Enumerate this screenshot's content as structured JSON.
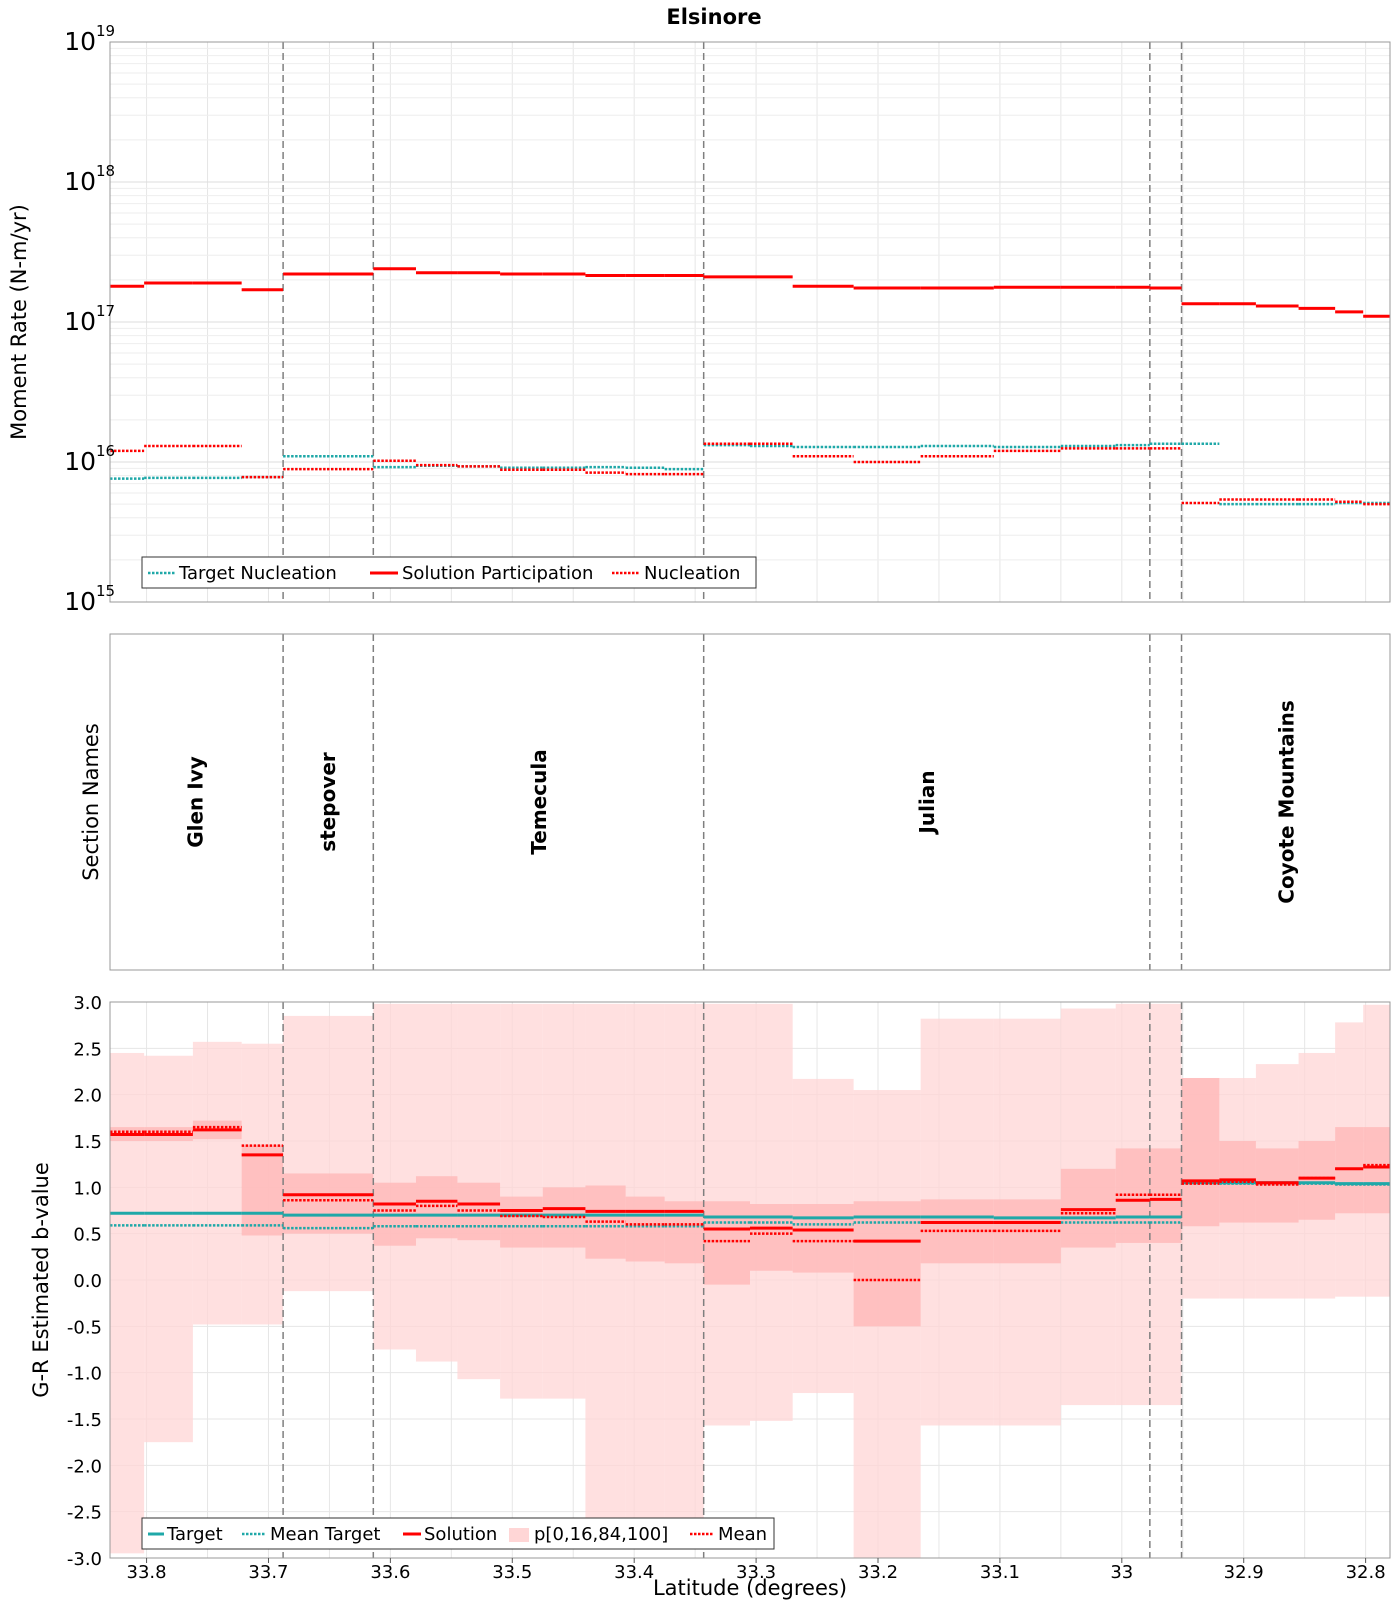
{
  "title": "Elsinore",
  "xlabel": "Latitude (degrees)",
  "xlim": [
    33.83,
    32.78
  ],
  "x_ticks": [
    33.8,
    33.7,
    33.6,
    33.5,
    33.4,
    33.3,
    33.2,
    33.1,
    33.0,
    32.9,
    32.8
  ],
  "x_tick_labels": [
    "33.8",
    "33.7",
    "33.6",
    "33.5",
    "33.4",
    "33.3",
    "33.2",
    "33.1",
    "33",
    "32.9",
    "32.8"
  ],
  "section_boundaries": [
    33.688,
    33.614,
    33.343,
    32.977,
    32.951
  ],
  "colors": {
    "target": "#1fa8a8",
    "solution": "#ff0000",
    "band_outer": "#ffd6d6",
    "band_inner": "#ffb8b8",
    "frame": "#999999",
    "grid": "#e6e6e6",
    "divider": "#7f7f7f"
  },
  "chart_data": [
    {
      "name": "moment-rate",
      "type": "line",
      "ylabel": "Moment Rate (N-m/yr)",
      "yscale": "log",
      "ylim": [
        1000000000000000.0,
        1e+19
      ],
      "y_ticks": [
        {
          "base": "10",
          "exp": "15"
        },
        {
          "base": "10",
          "exp": "16"
        },
        {
          "base": "10",
          "exp": "17"
        },
        {
          "base": "10",
          "exp": "18"
        },
        {
          "base": "10",
          "exp": "19"
        }
      ],
      "x_edges": [
        33.83,
        33.802,
        33.762,
        33.722,
        33.688,
        33.652,
        33.614,
        33.579,
        33.545,
        33.51,
        33.475,
        33.44,
        33.407,
        33.375,
        33.343,
        33.305,
        33.27,
        33.22,
        33.165,
        33.105,
        33.05,
        33.005,
        32.977,
        32.951,
        32.92,
        32.89,
        32.855,
        32.825,
        32.802,
        32.78
      ],
      "legend": [
        "Target Nucleation",
        "Solution Participation",
        "Nucleation"
      ],
      "legend_position": "lower-left",
      "series": [
        {
          "name": "Target Nucleation",
          "style": "dotted",
          "values": [
            7600000000000000.0,
            7700000000000000.0,
            7700000000000000.0,
            7800000000000000.0,
            1.1e+16,
            1.1e+16,
            9200000000000000.0,
            9400000000000000.0,
            9300000000000000.0,
            9100000000000000.0,
            9100000000000000.0,
            9200000000000000.0,
            9100000000000000.0,
            8900000000000000.0,
            1.32e+16,
            1.3e+16,
            1.28e+16,
            1.28e+16,
            1.3e+16,
            1.28e+16,
            1.3e+16,
            1.32e+16,
            1.35e+16,
            1.35e+16,
            5000000000000000.0,
            5000000000000000.0,
            5000000000000000.0,
            5100000000000000.0,
            5100000000000000.0,
            4900000000000000.0
          ]
        },
        {
          "name": "Solution Participation",
          "style": "solid",
          "values": [
            1.8e+17,
            1.9e+17,
            1.9e+17,
            1.7e+17,
            2.2e+17,
            2.2e+17,
            2.4e+17,
            2.25e+17,
            2.25e+17,
            2.2e+17,
            2.2e+17,
            2.15e+17,
            2.15e+17,
            2.15e+17,
            2.1e+17,
            2.1e+17,
            1.8e+17,
            1.75e+17,
            1.75e+17,
            1.77e+17,
            1.77e+17,
            1.77e+17,
            1.75e+17,
            1.35e+17,
            1.35e+17,
            1.3e+17,
            1.25e+17,
            1.18e+17,
            1.1e+17,
            1.1e+17
          ]
        },
        {
          "name": "Nucleation",
          "style": "dotted",
          "values": [
            1.2e+16,
            1.3e+16,
            1.3e+16,
            7800000000000000.0,
            8900000000000000.0,
            8900000000000000.0,
            1.02e+16,
            9500000000000000.0,
            9300000000000000.0,
            8800000000000000.0,
            8800000000000000.0,
            8400000000000000.0,
            8200000000000000.0,
            8200000000000000.0,
            1.35e+16,
            1.35e+16,
            1.1e+16,
            1e+16,
            1.1e+16,
            1.2e+16,
            1.25e+16,
            1.25e+16,
            1.25e+16,
            5100000000000000.0,
            5400000000000000.0,
            5400000000000000.0,
            5400000000000000.0,
            5200000000000000.0,
            5000000000000000.0,
            5000000000000000.0
          ]
        }
      ]
    },
    {
      "name": "section-names",
      "type": "table",
      "ylabel": "Section Names",
      "sections": [
        {
          "name": "Glen Ivy",
          "center": 33.76
        },
        {
          "name": "stepover",
          "center": 33.651
        },
        {
          "name": "Temecula",
          "center": 33.478
        },
        {
          "name": "Julian",
          "center": 33.16
        },
        {
          "name": "Coyote Mountains",
          "center": 32.865
        }
      ]
    },
    {
      "name": "b-value",
      "type": "area",
      "ylabel": "G-R Estimated b-value",
      "ylim": [
        -3.0,
        3.0
      ],
      "y_ticks": [
        3.0,
        2.5,
        2.0,
        1.5,
        1.0,
        0.5,
        0.0,
        -0.5,
        -1.0,
        -1.5,
        -2.0,
        -2.5,
        -3.0
      ],
      "y_tick_labels": [
        "3.0",
        "2.5",
        "2.0",
        "1.5",
        "1.0",
        "0.5",
        "0.0",
        "-0.5",
        "-1.0",
        "-1.5",
        "-2.0",
        "-2.5",
        "-3.0"
      ],
      "x_edges": [
        33.83,
        33.802,
        33.762,
        33.722,
        33.688,
        33.652,
        33.614,
        33.579,
        33.545,
        33.51,
        33.475,
        33.44,
        33.407,
        33.375,
        33.343,
        33.305,
        33.27,
        33.22,
        33.165,
        33.105,
        33.05,
        33.005,
        32.977,
        32.951,
        32.92,
        32.89,
        32.855,
        32.825,
        32.802,
        32.78
      ],
      "legend": [
        "Target",
        "Mean Target",
        "Solution",
        "p[0,16,84,100]",
        "Mean"
      ],
      "legend_position": "lower-left",
      "series": [
        {
          "name": "p0",
          "values": [
            -2.95,
            -1.75,
            -0.48,
            -0.48,
            -0.12,
            -0.12,
            -0.75,
            -0.88,
            -1.07,
            -1.28,
            -1.28,
            -2.85,
            -2.85,
            -2.85,
            -1.57,
            -1.52,
            -1.22,
            -3.0,
            -1.57,
            -1.57,
            -1.35,
            -1.35,
            -1.35,
            -0.2,
            -0.2,
            -0.2,
            -0.2,
            -0.18,
            -0.18,
            -0.18
          ]
        },
        {
          "name": "p16",
          "values": [
            1.5,
            1.5,
            1.52,
            0.48,
            0.5,
            0.5,
            0.37,
            0.45,
            0.43,
            0.35,
            0.35,
            0.23,
            0.2,
            0.18,
            -0.05,
            0.1,
            0.08,
            -0.5,
            0.18,
            0.18,
            0.35,
            0.4,
            0.4,
            0.58,
            0.62,
            0.62,
            0.65,
            0.72,
            0.72,
            0.72
          ]
        },
        {
          "name": "p84",
          "values": [
            1.65,
            1.65,
            1.72,
            1.45,
            1.15,
            1.15,
            1.05,
            1.12,
            1.05,
            0.9,
            1.0,
            1.02,
            0.9,
            0.85,
            0.85,
            0.82,
            0.82,
            0.85,
            0.87,
            0.87,
            1.2,
            1.42,
            1.42,
            2.18,
            1.5,
            1.42,
            1.5,
            1.65,
            1.65,
            1.7
          ]
        },
        {
          "name": "p100",
          "values": [
            2.45,
            2.42,
            2.57,
            2.55,
            2.85,
            2.85,
            2.98,
            2.98,
            2.98,
            2.98,
            2.98,
            2.98,
            2.98,
            2.98,
            2.98,
            2.98,
            2.17,
            2.05,
            2.82,
            2.82,
            2.93,
            2.98,
            2.98,
            2.18,
            2.18,
            2.33,
            2.45,
            2.78,
            2.97,
            2.97
          ]
        },
        {
          "name": "Target",
          "style": "solid",
          "values": [
            0.72,
            0.72,
            0.72,
            0.72,
            0.7,
            0.7,
            0.7,
            0.7,
            0.7,
            0.7,
            0.7,
            0.7,
            0.7,
            0.7,
            0.68,
            0.68,
            0.67,
            0.68,
            0.68,
            0.67,
            0.67,
            0.68,
            0.68,
            1.05,
            1.05,
            1.05,
            1.05,
            1.04,
            1.04,
            1.04
          ]
        },
        {
          "name": "Mean Target",
          "style": "dotted",
          "values": [
            0.59,
            0.59,
            0.59,
            0.59,
            0.56,
            0.56,
            0.58,
            0.58,
            0.58,
            0.58,
            0.58,
            0.58,
            0.58,
            0.58,
            0.62,
            0.62,
            0.6,
            0.62,
            0.62,
            0.62,
            0.62,
            0.62,
            0.62,
            1.05,
            1.04,
            1.04,
            1.04,
            1.03,
            1.03,
            1.03
          ]
        },
        {
          "name": "Solution",
          "style": "solid",
          "values": [
            1.57,
            1.57,
            1.62,
            1.35,
            0.92,
            0.92,
            0.82,
            0.85,
            0.82,
            0.75,
            0.77,
            0.74,
            0.74,
            0.74,
            0.55,
            0.56,
            0.54,
            0.42,
            0.62,
            0.62,
            0.76,
            0.86,
            0.87,
            1.07,
            1.08,
            1.05,
            1.1,
            1.2,
            1.22,
            1.22
          ]
        },
        {
          "name": "Mean",
          "style": "dotted",
          "values": [
            1.6,
            1.6,
            1.65,
            1.45,
            0.86,
            0.86,
            0.75,
            0.8,
            0.75,
            0.69,
            0.68,
            0.63,
            0.6,
            0.6,
            0.42,
            0.5,
            0.42,
            0.0,
            0.53,
            0.53,
            0.72,
            0.92,
            0.92,
            1.04,
            1.06,
            1.03,
            1.1,
            1.2,
            1.24,
            1.24
          ]
        }
      ]
    }
  ]
}
